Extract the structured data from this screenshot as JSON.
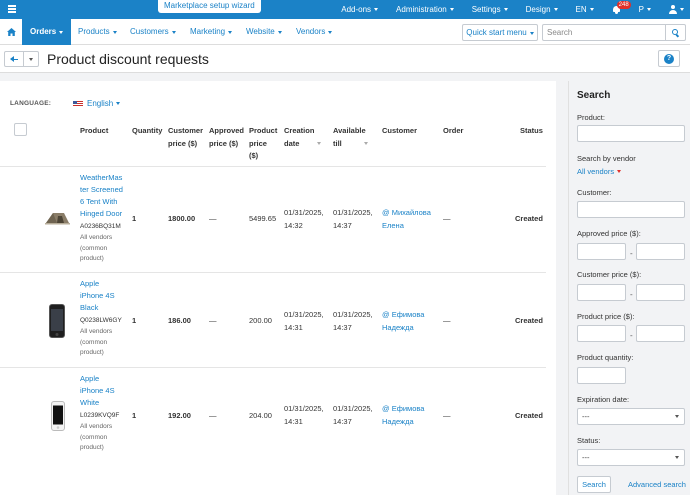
{
  "topbar": {
    "wizard": "Marketplace setup wizard",
    "items": [
      "Add-ons",
      "Administration",
      "Settings",
      "Design",
      "EN"
    ],
    "notifications": "248",
    "user_initial": "P"
  },
  "nav": {
    "tabs": [
      "Orders",
      "Products",
      "Customers",
      "Marketing",
      "Website",
      "Vendors"
    ],
    "quick_start": "Quick start menu",
    "search_placeholder": "Search"
  },
  "page": {
    "title": "Product discount requests"
  },
  "filters": {
    "language_label": "LANGUAGE:",
    "language_value": "English"
  },
  "table": {
    "headers": {
      "product": "Product",
      "quantity": "Quantity",
      "customer_price_1": "Customer",
      "customer_price_2": "price ($)",
      "approved_price_1": "Approved",
      "approved_price_2": "price ($)",
      "product_price_1": "Product",
      "product_price_2": "price",
      "product_price_3": "($)",
      "creation_1": "Creation",
      "creation_2": "date",
      "available_1": "Available",
      "available_2": "till",
      "customer": "Customer",
      "order": "Order",
      "status": "Status"
    },
    "rows": [
      {
        "name_lines": [
          "WeatherMas",
          "ter Screened",
          "6 Tent With",
          "Hinged Door"
        ],
        "sku": "A0236BQ31M",
        "vendor_lines": [
          "All vendors",
          "(common",
          "product)"
        ],
        "quantity": "1",
        "customer_price": "1800.00",
        "approved_price": "—",
        "product_price": "5499.65",
        "creation_date": "01/31/2025,",
        "creation_time": "14:32",
        "available_date": "01/31/2025,",
        "available_time": "14:37",
        "customer_lines": [
          "@ Михайлова",
          "Елена"
        ],
        "order": "—",
        "status": "Created"
      },
      {
        "name_lines": [
          "Apple",
          "iPhone 4S",
          "Black"
        ],
        "sku": "Q0238LW6GY",
        "vendor_lines": [
          "All vendors",
          "(common",
          "product)"
        ],
        "quantity": "1",
        "customer_price": "186.00",
        "approved_price": "—",
        "product_price": "200.00",
        "creation_date": "01/31/2025,",
        "creation_time": "14:31",
        "available_date": "01/31/2025,",
        "available_time": "14:37",
        "customer_lines": [
          "@ Ефимова",
          "Надежда"
        ],
        "order": "—",
        "status": "Created"
      },
      {
        "name_lines": [
          "Apple",
          "iPhone 4S",
          "White"
        ],
        "sku": "L0239KVQ9F",
        "vendor_lines": [
          "All vendors",
          "(common",
          "product)"
        ],
        "quantity": "1",
        "customer_price": "192.00",
        "approved_price": "—",
        "product_price": "204.00",
        "creation_date": "01/31/2025,",
        "creation_time": "14:31",
        "available_date": "01/31/2025,",
        "available_time": "14:37",
        "customer_lines": [
          "@ Ефимова",
          "Надежда"
        ],
        "order": "—",
        "status": "Created"
      }
    ]
  },
  "sidebar": {
    "title": "Search",
    "product_label": "Product:",
    "vendor_label": "Search by vendor",
    "vendor_value": "All vendors",
    "customer_label": "Customer:",
    "approved_label": "Approved price ($):",
    "customer_price_label": "Customer price ($):",
    "product_price_label": "Product price ($):",
    "quantity_label": "Product quantity:",
    "expiration_label": "Expiration date:",
    "expiration_value": "---",
    "status_label": "Status:",
    "status_value": "---",
    "search_button": "Search",
    "advanced_link": "Advanced search",
    "range_dash": "-"
  }
}
